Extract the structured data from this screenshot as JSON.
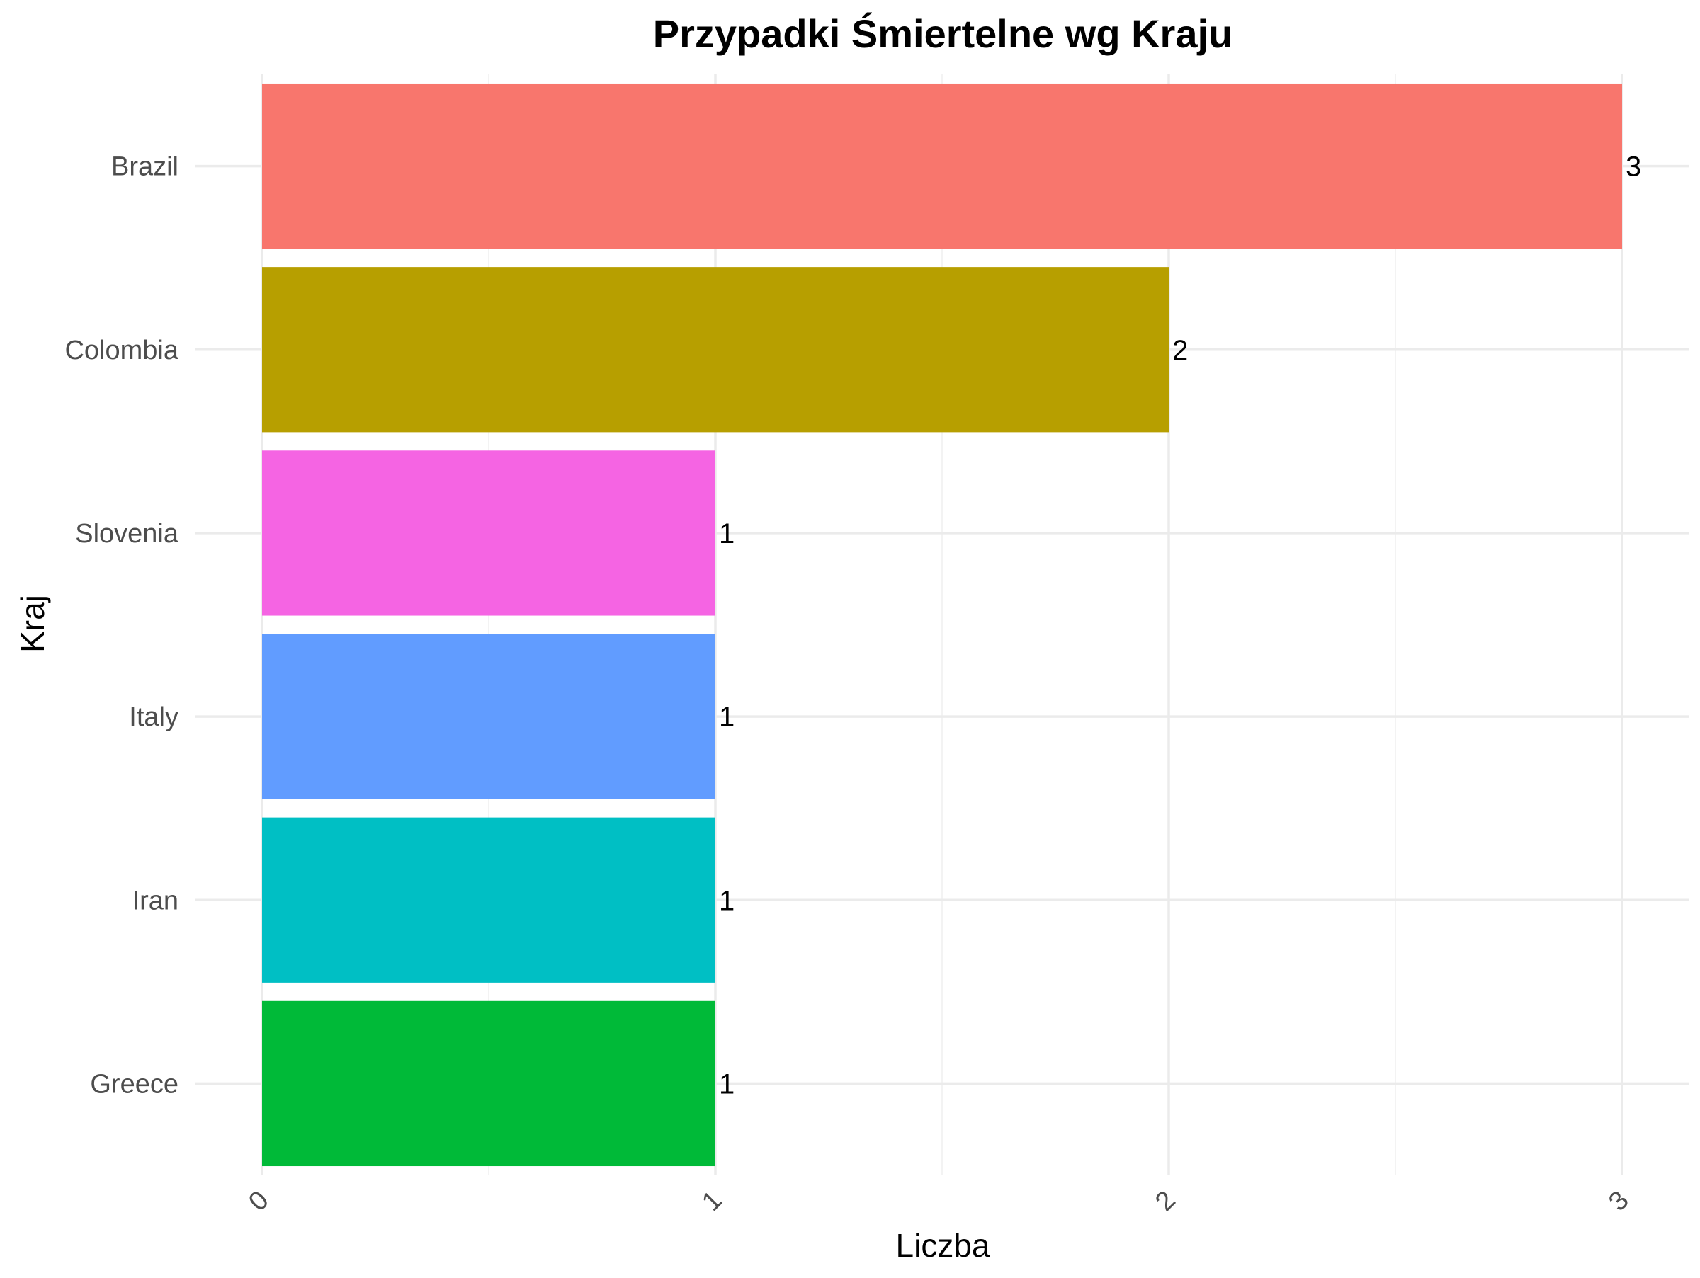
{
  "chart_data": {
    "type": "bar",
    "orientation": "horizontal",
    "title": "Przypadki Śmiertelne wg Kraju",
    "xlabel": "Liczba",
    "ylabel": "Kraj",
    "categories": [
      "Brazil",
      "Colombia",
      "Slovenia",
      "Italy",
      "Iran",
      "Greece"
    ],
    "values": [
      3,
      2,
      1,
      1,
      1,
      1
    ],
    "colors": [
      "#F8766D",
      "#B79F00",
      "#F564E3",
      "#619CFF",
      "#00BFC4",
      "#00BA38"
    ],
    "data_labels": [
      "3",
      "2",
      "1",
      "1",
      "1",
      "1"
    ],
    "xlim": [
      0,
      3
    ],
    "x_ticks": [
      "0",
      "1",
      "2",
      "3"
    ],
    "grid": true,
    "legend": "none"
  }
}
